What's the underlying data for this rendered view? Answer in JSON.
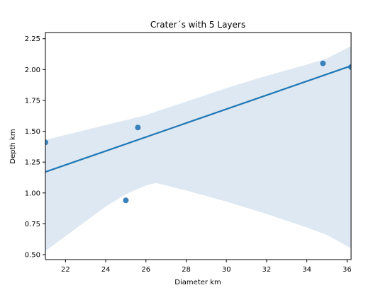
{
  "chart_data": {
    "type": "scatter",
    "title": "Crater´s with 5 Layers",
    "xlabel": "Diameter km",
    "ylabel": "Depth km",
    "xlim": [
      21.0,
      36.2
    ],
    "ylim": [
      0.46,
      2.3
    ],
    "x_ticks": [
      22,
      24,
      26,
      28,
      30,
      32,
      34,
      36
    ],
    "y_ticks": [
      0.5,
      0.75,
      1.0,
      1.25,
      1.5,
      1.75,
      2.0,
      2.25
    ],
    "x_tick_labels": [
      "22",
      "24",
      "26",
      "28",
      "30",
      "32",
      "34",
      "36"
    ],
    "y_tick_labels": [
      "0.50",
      "0.75",
      "1.00",
      "1.25",
      "1.50",
      "1.75",
      "2.00",
      "2.25"
    ],
    "points": [
      {
        "x": 21.0,
        "y": 1.41
      },
      {
        "x": 25.0,
        "y": 0.94
      },
      {
        "x": 25.6,
        "y": 1.53
      },
      {
        "x": 34.8,
        "y": 2.05
      },
      {
        "x": 36.2,
        "y": 2.02
      }
    ],
    "regression_line": {
      "x": [
        21.0,
        36.2
      ],
      "y": [
        1.17,
        2.03
      ]
    },
    "confidence_band": {
      "x": [
        21.0,
        22.0,
        23.0,
        24.0,
        25.0,
        26.0,
        26.5,
        28.0,
        30.0,
        32.0,
        34.0,
        35.0,
        36.2
      ],
      "upper": [
        1.43,
        1.47,
        1.51,
        1.55,
        1.59,
        1.63,
        1.66,
        1.74,
        1.85,
        1.95,
        2.04,
        2.09,
        2.19
      ],
      "lower": [
        0.53,
        0.65,
        0.77,
        0.89,
        0.99,
        1.06,
        1.08,
        1.02,
        0.93,
        0.83,
        0.72,
        0.66,
        0.55
      ]
    },
    "colors": {
      "points": "#2f7bb6",
      "line": "#1f77b4",
      "band": "#dde8f3"
    },
    "grid": false,
    "legend": "none"
  }
}
